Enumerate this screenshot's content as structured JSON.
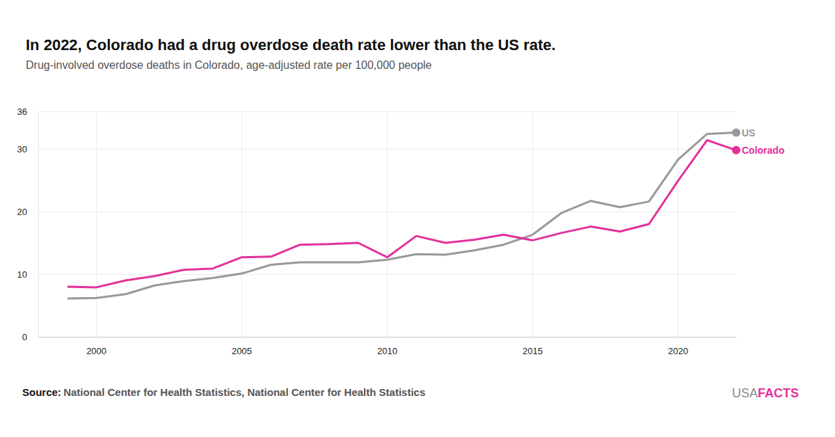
{
  "chart_data": {
    "type": "line",
    "title": "In 2022, Colorado had a drug overdose death rate lower than the US rate.",
    "subtitle": "Drug-involved overdose deaths in Colorado, age-adjusted rate per 100,000 people",
    "source_label": "Source:",
    "source": "National Center for Health Statistics, National Center for Health Statistics",
    "brand": [
      "USA",
      "FACTS"
    ],
    "x": [
      1999,
      2000,
      2001,
      2002,
      2003,
      2004,
      2005,
      2006,
      2007,
      2008,
      2009,
      2010,
      2011,
      2012,
      2013,
      2014,
      2015,
      2016,
      2017,
      2018,
      2019,
      2020,
      2021,
      2022
    ],
    "series": [
      {
        "name": "US",
        "color": "#999999",
        "values": [
          6.1,
          6.2,
          6.8,
          8.2,
          8.9,
          9.4,
          10.1,
          11.5,
          11.9,
          11.9,
          11.9,
          12.3,
          13.2,
          13.1,
          13.8,
          14.7,
          16.3,
          19.8,
          21.7,
          20.7,
          21.6,
          28.3,
          32.4,
          32.6
        ]
      },
      {
        "name": "Colorado",
        "color": "#e3319b",
        "values": [
          8.0,
          7.9,
          9.0,
          9.7,
          10.7,
          10.9,
          12.7,
          12.8,
          14.7,
          14.8,
          15.0,
          12.7,
          16.1,
          15.0,
          15.5,
          16.3,
          15.4,
          16.6,
          17.6,
          16.8,
          18.0,
          24.9,
          31.4,
          29.8
        ]
      }
    ],
    "xlim": [
      1998,
      2022
    ],
    "xticks": [
      2000,
      2005,
      2010,
      2015,
      2020
    ],
    "ylim": [
      0,
      36
    ],
    "yticks": [
      0,
      10,
      20,
      30
    ],
    "grid": true
  }
}
